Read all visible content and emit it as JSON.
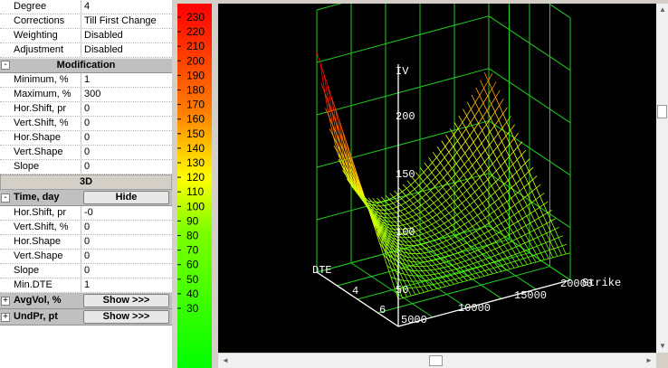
{
  "params_top": [
    {
      "label": "Degree",
      "value": "4"
    },
    {
      "label": "Corrections",
      "value": "Till First Change"
    },
    {
      "label": "Weighting",
      "value": "Disabled"
    },
    {
      "label": "Adjustment",
      "value": "Disabled"
    }
  ],
  "modification": {
    "title": "Modification",
    "toggle": "-",
    "rows": [
      {
        "label": "Minimum, %",
        "value": "1"
      },
      {
        "label": "Maximum, %",
        "value": "300"
      },
      {
        "label": "Hor.Shift, pr",
        "value": "0"
      },
      {
        "label": "Vert.Shift, %",
        "value": "0"
      },
      {
        "label": "Hor.Shape",
        "value": "0"
      },
      {
        "label": "Vert.Shape",
        "value": "0"
      },
      {
        "label": "Slope",
        "value": "0"
      }
    ]
  },
  "section_3d": "3D",
  "time": {
    "label": "Time, day",
    "toggle": "-",
    "button": "Hide",
    "rows": [
      {
        "label": "Hor.Shift, pr",
        "value": "-0"
      },
      {
        "label": "Vert.Shift, %",
        "value": "0"
      },
      {
        "label": "Hor.Shape",
        "value": "0"
      },
      {
        "label": "Vert.Shape",
        "value": "0"
      },
      {
        "label": "Slope",
        "value": "0"
      },
      {
        "label": "Min.DTE",
        "value": "1"
      }
    ]
  },
  "avgvol": {
    "label": "AvgVol, %",
    "toggle": "+",
    "button": "Show >>>"
  },
  "undpr": {
    "label": "UndPr, pt",
    "toggle": "+",
    "button": "Show >>>"
  },
  "colorbar": {
    "labels": [
      "230",
      "220",
      "210",
      "200",
      "190",
      "180",
      "170",
      "160",
      "150",
      "140",
      "130",
      "120",
      "110",
      "100",
      "90",
      "80",
      "70",
      "60",
      "50",
      "40",
      "30"
    ]
  },
  "chart_data": {
    "type": "surface3d",
    "axes": {
      "z": {
        "label": "IV",
        "ticks": [
          "200",
          "150",
          "100",
          "50"
        ]
      },
      "x": {
        "label": "DTE",
        "ticks": [
          "4",
          "6"
        ]
      },
      "y": {
        "label": "Strike",
        "ticks": [
          "5000",
          "10000",
          "15000",
          "20000"
        ]
      }
    },
    "colors": {
      "high": "#ff2a00",
      "mid": "#ffff00",
      "low": "#22ff22",
      "grid": "#22cc22"
    }
  },
  "scroll": {
    "up": "▲",
    "down": "▼",
    "left": "◄",
    "right": "►"
  }
}
